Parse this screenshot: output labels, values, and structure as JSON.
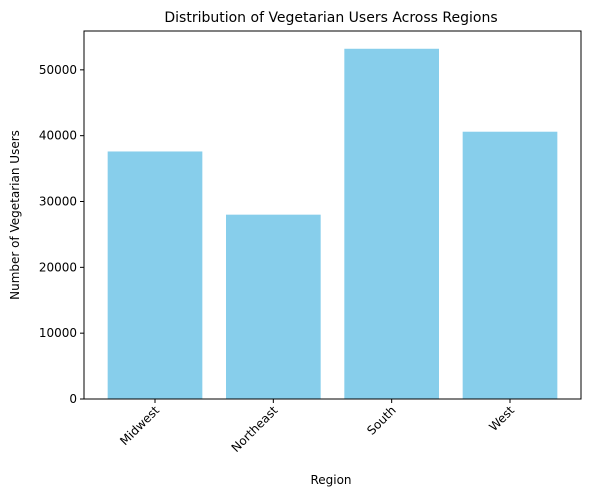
{
  "chart_data": {
    "type": "bar",
    "title": "Distribution of Vegetarian Users Across Regions",
    "xlabel": "Region",
    "ylabel": "Number of Vegetarian Users",
    "categories": [
      "Midwest",
      "Northeast",
      "South",
      "West"
    ],
    "values": [
      37600,
      28000,
      53200,
      40600
    ],
    "ylim": [
      0,
      55900
    ],
    "yticks": [
      0,
      10000,
      20000,
      30000,
      40000,
      50000
    ],
    "grid": false,
    "legend": "none",
    "bar_color": "#87ceeb",
    "xtick_rotation": 45
  }
}
